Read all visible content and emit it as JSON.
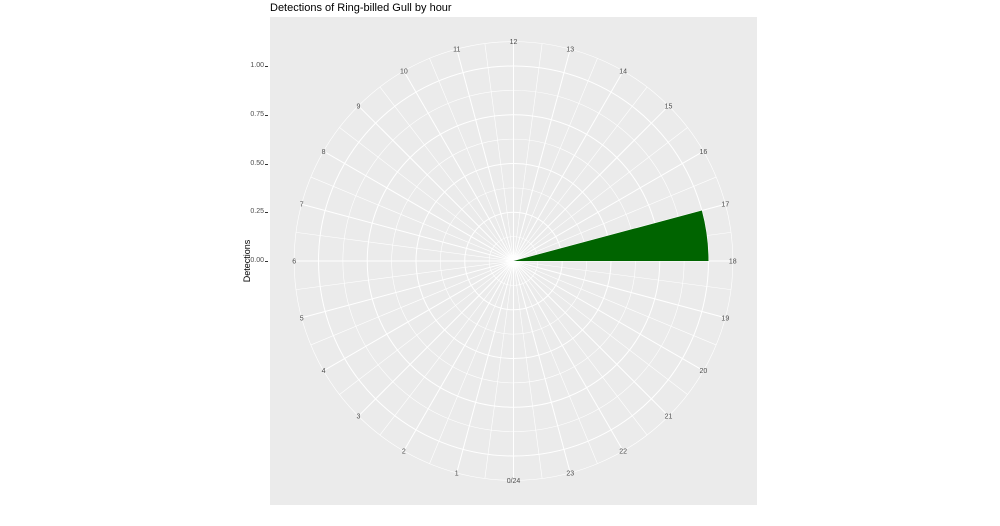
{
  "chart_data": {
    "type": "bar",
    "coord": "polar",
    "title": "Detections of Ring-billed Gull by hour",
    "ylabel": "Detections",
    "categories": [
      0,
      1,
      2,
      3,
      4,
      5,
      6,
      7,
      8,
      9,
      10,
      11,
      12,
      13,
      14,
      15,
      16,
      17,
      18,
      19,
      20,
      21,
      22,
      23
    ],
    "values": [
      0,
      0,
      0,
      0,
      0,
      0,
      0,
      0,
      0,
      0,
      0,
      0,
      0,
      0,
      0,
      0,
      0,
      1,
      0,
      0,
      0,
      0,
      0,
      0
    ],
    "theta_labels": [
      "0/24",
      "1",
      "2",
      "3",
      "4",
      "5",
      "6",
      "7",
      "8",
      "9",
      "10",
      "11",
      "12",
      "13",
      "14",
      "15",
      "16",
      "17",
      "18",
      "19",
      "20",
      "21",
      "22",
      "23"
    ],
    "r_ticks": [
      {
        "value": 0.0,
        "label": "0.00"
      },
      {
        "value": 0.25,
        "label": "0.25"
      },
      {
        "value": 0.5,
        "label": "0.50"
      },
      {
        "value": 0.75,
        "label": "0.75"
      },
      {
        "value": 1.0,
        "label": "1.00"
      }
    ],
    "r_minor": [
      0.125,
      0.375,
      0.625,
      0.875,
      1.125
    ],
    "ylim": [
      0,
      1.125
    ],
    "orientation": {
      "top": "12",
      "right": "18",
      "bottom": "0/24",
      "left": "6"
    },
    "legend": "none",
    "colors": {
      "bar": "#006400",
      "panel_bg": "#EBEBEB",
      "grid": "#FFFFFF",
      "tick_text": "#4D4D4D",
      "tick_mark": "#333333",
      "title_text": "#000000"
    }
  }
}
